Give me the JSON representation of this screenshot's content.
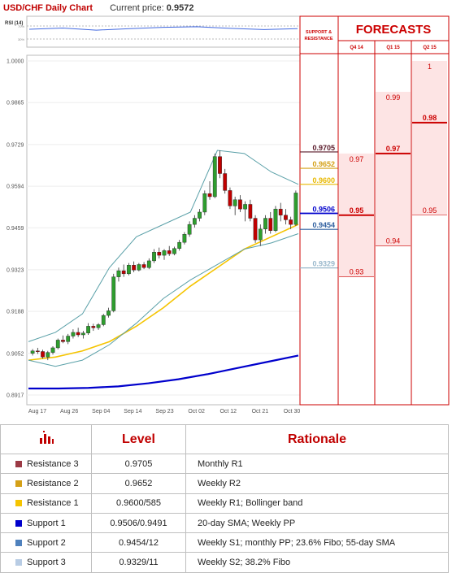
{
  "header": {
    "title": "USD/CHF Daily Chart",
    "price_label": "Current price:",
    "price_value": "0.9572"
  },
  "forecast_panel": {
    "sr_label_1": "SUPPORT &",
    "sr_label_2": "RESISTANCE",
    "title": "FORECASTS",
    "quarters": [
      "Q4 14",
      "Q1 15",
      "Q2 15"
    ]
  },
  "colors": {
    "r3": "#5a1a2a",
    "r2": "#d4a017",
    "r1": "#e8b800",
    "s1": "#0000cc",
    "s2": "#2f5f9f",
    "s3": "#99b8cc",
    "forecast_red": "#cc0000",
    "forecast_fill": "#fde4e4"
  },
  "chart_data": [
    {
      "type": "line",
      "title": "RSI (14)",
      "ylabel": "",
      "ytick_labels": [
        "70%",
        "30%"
      ],
      "x": [
        "Aug 17",
        "Aug 26",
        "Sep 04",
        "Sep 14",
        "Sep 23",
        "Oct 02",
        "Oct 12",
        "Oct 21",
        "Oct 30"
      ],
      "series": [
        {
          "values": [
            58,
            62,
            55,
            60,
            64,
            66,
            61,
            57,
            60
          ]
        }
      ]
    },
    {
      "type": "candlestick",
      "ylim": [
        0.8917,
        1.0
      ],
      "ytick_labels": [
        "1.0000",
        "0.9865",
        "0.9729",
        "0.9594",
        "0.9459",
        "0.9323",
        "0.9188",
        "0.9052",
        "0.8917"
      ],
      "xtick_labels": [
        "Aug 17",
        "Aug 26",
        "Sep 04",
        "Sep 14",
        "Sep 23",
        "Oct 02",
        "Oct 12",
        "Oct 21",
        "Oct 30"
      ],
      "candles": [
        [
          0.9052,
          0.9066,
          0.9045,
          0.906
        ],
        [
          0.906,
          0.907,
          0.905,
          0.9058
        ],
        [
          0.9058,
          0.9064,
          0.9035,
          0.904
        ],
        [
          0.904,
          0.906,
          0.903,
          0.9055
        ],
        [
          0.9055,
          0.9075,
          0.9048,
          0.907
        ],
        [
          0.907,
          0.91,
          0.9065,
          0.9095
        ],
        [
          0.9095,
          0.911,
          0.9085,
          0.909
        ],
        [
          0.909,
          0.9115,
          0.9082,
          0.9108
        ],
        [
          0.9108,
          0.913,
          0.91,
          0.912
        ],
        [
          0.912,
          0.9135,
          0.9105,
          0.9112
        ],
        [
          0.9112,
          0.9125,
          0.91,
          0.9118
        ],
        [
          0.9118,
          0.915,
          0.9112,
          0.914
        ],
        [
          0.914,
          0.9148,
          0.9125,
          0.9135
        ],
        [
          0.9135,
          0.915,
          0.9128,
          0.9145
        ],
        [
          0.9145,
          0.918,
          0.914,
          0.9175
        ],
        [
          0.9175,
          0.92,
          0.9168,
          0.919
        ],
        [
          0.919,
          0.931,
          0.9185,
          0.93
        ],
        [
          0.93,
          0.933,
          0.9285,
          0.932
        ],
        [
          0.932,
          0.934,
          0.93,
          0.931
        ],
        [
          0.931,
          0.9345,
          0.9305,
          0.9338
        ],
        [
          0.9338,
          0.935,
          0.9315,
          0.9322
        ],
        [
          0.9322,
          0.9345,
          0.9318,
          0.934
        ],
        [
          0.934,
          0.9348,
          0.9325,
          0.933
        ],
        [
          0.933,
          0.936,
          0.9325,
          0.9352
        ],
        [
          0.9352,
          0.939,
          0.9345,
          0.938
        ],
        [
          0.938,
          0.9395,
          0.936,
          0.937
        ],
        [
          0.937,
          0.939,
          0.9355,
          0.9385
        ],
        [
          0.9385,
          0.94,
          0.9368,
          0.9375
        ],
        [
          0.9375,
          0.9398,
          0.937,
          0.9392
        ],
        [
          0.9392,
          0.942,
          0.9385,
          0.9412
        ],
        [
          0.9412,
          0.9445,
          0.9405,
          0.9438
        ],
        [
          0.9438,
          0.948,
          0.943,
          0.947
        ],
        [
          0.947,
          0.95,
          0.946,
          0.949
        ],
        [
          0.949,
          0.952,
          0.948,
          0.951
        ],
        [
          0.951,
          0.958,
          0.95,
          0.957
        ],
        [
          0.957,
          0.961,
          0.955,
          0.956
        ],
        [
          0.956,
          0.97,
          0.9555,
          0.969
        ],
        [
          0.969,
          0.971,
          0.962,
          0.9635
        ],
        [
          0.9635,
          0.965,
          0.957,
          0.958
        ],
        [
          0.958,
          0.959,
          0.952,
          0.953
        ],
        [
          0.953,
          0.956,
          0.95,
          0.955
        ],
        [
          0.955,
          0.9565,
          0.951,
          0.952
        ],
        [
          0.952,
          0.9545,
          0.948,
          0.9535
        ],
        [
          0.9535,
          0.955,
          0.948,
          0.949
        ],
        [
          0.949,
          0.95,
          0.941,
          0.942
        ],
        [
          0.942,
          0.947,
          0.94,
          0.9455
        ],
        [
          0.9455,
          0.95,
          0.944,
          0.949
        ],
        [
          0.949,
          0.951,
          0.944,
          0.945
        ],
        [
          0.945,
          0.953,
          0.9445,
          0.952
        ],
        [
          0.952,
          0.954,
          0.948,
          0.95
        ],
        [
          0.95,
          0.952,
          0.947,
          0.9485
        ],
        [
          0.9485,
          0.9495,
          0.9455,
          0.947
        ],
        [
          0.947,
          0.958,
          0.9465,
          0.9572
        ]
      ],
      "series": [
        {
          "name": "55-day SMA",
          "color": "#0000cc",
          "values": [
            0.8938,
            0.8938,
            0.894,
            0.8945,
            0.8955,
            0.8968,
            0.8985,
            0.9005,
            0.9025,
            0.9045
          ]
        },
        {
          "name": "20-day SMA",
          "color": "#f5c400",
          "values": [
            0.903,
            0.904,
            0.906,
            0.909,
            0.914,
            0.92,
            0.927,
            0.933,
            0.939,
            0.943,
            0.947
          ]
        },
        {
          "name": "Bollinger upper",
          "color": "#5aa0a8",
          "values": [
            0.909,
            0.912,
            0.918,
            0.933,
            0.943,
            0.947,
            0.951,
            0.971,
            0.97,
            0.964,
            0.96
          ]
        },
        {
          "name": "Bollinger lower",
          "color": "#5aa0a8",
          "values": [
            0.903,
            0.901,
            0.903,
            0.908,
            0.915,
            0.923,
            0.929,
            0.934,
            0.939,
            0.941,
            0.944
          ]
        }
      ],
      "levels": [
        {
          "value": 0.9705,
          "label": "0.9705",
          "key": "r3"
        },
        {
          "value": 0.9652,
          "label": "0.9652",
          "key": "r2"
        },
        {
          "value": 0.96,
          "label": "0.9600",
          "key": "r1"
        },
        {
          "value": 0.9506,
          "label": "0.9506",
          "key": "s1"
        },
        {
          "value": 0.9454,
          "label": "0.9454",
          "key": "s2"
        },
        {
          "value": 0.9329,
          "label": "0.9329",
          "key": "s3"
        }
      ]
    },
    {
      "type": "range",
      "title": "FORECASTS",
      "categories": [
        "Q4 14",
        "Q1 15",
        "Q2 15"
      ],
      "series": [
        {
          "name": "high",
          "values": [
            0.97,
            0.99,
            1.0
          ]
        },
        {
          "name": "median",
          "values": [
            0.95,
            0.97,
            0.98
          ]
        },
        {
          "name": "low",
          "values": [
            0.93,
            0.94,
            0.95
          ]
        }
      ],
      "value_labels": {
        "high": [
          "0.97",
          "0.99",
          "1"
        ],
        "median": [
          "0.95",
          "0.97",
          "0.98"
        ],
        "low": [
          "0.93",
          "0.94",
          "0.95"
        ]
      }
    }
  ],
  "table": {
    "headers": [
      "Level",
      "Rationale"
    ],
    "rows": [
      {
        "name": "Resistance 3",
        "color": "#9b3a45",
        "level": "0.9705",
        "rationale": "Monthly R1"
      },
      {
        "name": "Resistance 2",
        "color": "#d4a017",
        "level": "0.9652",
        "rationale": "Weekly R2"
      },
      {
        "name": "Resistance 1",
        "color": "#f5c400",
        "level": "0.9600/585",
        "rationale": "Weekly R1; Bollinger band"
      },
      {
        "name": "Support 1",
        "color": "#0000cc",
        "level": "0.9506/0.9491",
        "rationale": "20-day SMA; Weekly PP"
      },
      {
        "name": "Support 2",
        "color": "#4f81bd",
        "level": "0.9454/12",
        "rationale": "Weekly S1; monthly PP; 23.6% Fibo; 55-day SMA"
      },
      {
        "name": "Support 3",
        "color": "#b8cce4",
        "level": "0.9329/11",
        "rationale": "Weekly S2; 38.2% Fibo"
      }
    ]
  }
}
